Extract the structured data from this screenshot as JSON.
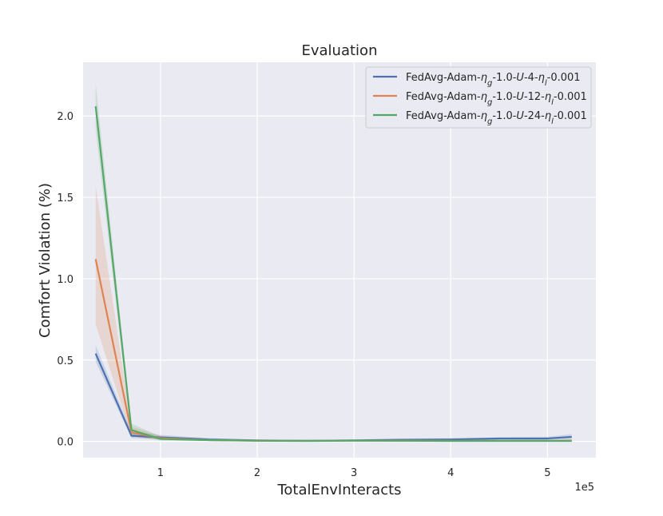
{
  "chart_data": {
    "type": "line",
    "title": "Evaluation",
    "xlabel": "TotalEnvInteracts",
    "ylabel": "Comfort Violation (%)",
    "x_multiplier_label": "1e5",
    "xlim": [
      0.2,
      5.5
    ],
    "ylim": [
      -0.1,
      2.33
    ],
    "x_ticks": [
      1,
      2,
      3,
      4,
      5
    ],
    "y_ticks": [
      0.0,
      0.5,
      1.0,
      1.5,
      2.0
    ],
    "y_tick_labels": [
      "0.0",
      "0.5",
      "1.0",
      "1.5",
      "2.0"
    ],
    "grid": true,
    "legend_position": "top-right",
    "x": [
      0.33,
      0.7,
      1.0,
      1.5,
      2.0,
      2.5,
      3.0,
      3.5,
      4.0,
      4.5,
      5.0,
      5.25
    ],
    "series": [
      {
        "label_parts": [
          "FedAvg-Adam-",
          "η",
          "g",
          "-1.0-",
          "U",
          "-4-",
          "η",
          "l",
          "-0.001"
        ],
        "color": "#4c72b0",
        "values": [
          0.54,
          0.035,
          0.025,
          0.012,
          0.006,
          0.004,
          0.006,
          0.01,
          0.012,
          0.018,
          0.018,
          0.028
        ],
        "lower": [
          0.49,
          0.02,
          0.012,
          0.005,
          0.002,
          0.001,
          0.002,
          0.004,
          0.006,
          0.01,
          0.01,
          0.012
        ],
        "upper": [
          0.59,
          0.06,
          0.04,
          0.02,
          0.01,
          0.008,
          0.012,
          0.018,
          0.02,
          0.025,
          0.028,
          0.045
        ]
      },
      {
        "label_parts": [
          "FedAvg-Adam-",
          "η",
          "g",
          "-1.0-",
          "U",
          "-12-",
          "η",
          "l",
          "-0.001"
        ],
        "color": "#dd8452",
        "values": [
          1.12,
          0.055,
          0.02,
          0.008,
          0.005,
          0.004,
          0.005,
          0.005,
          0.004,
          0.004,
          0.004,
          0.005
        ],
        "lower": [
          0.72,
          0.03,
          0.01,
          0.003,
          0.001,
          0.001,
          0.001,
          0.001,
          0.001,
          0.001,
          0.001,
          0.001
        ],
        "upper": [
          1.57,
          0.09,
          0.035,
          0.015,
          0.01,
          0.008,
          0.01,
          0.01,
          0.008,
          0.008,
          0.008,
          0.01
        ]
      },
      {
        "label_parts": [
          "FedAvg-Adam-",
          "η",
          "g",
          "-1.0-",
          "U",
          "-24-",
          "η",
          "l",
          "-0.001"
        ],
        "color": "#55a868",
        "values": [
          2.06,
          0.07,
          0.015,
          0.008,
          0.004,
          0.003,
          0.005,
          0.004,
          0.003,
          0.003,
          0.003,
          0.003
        ],
        "lower": [
          1.92,
          0.035,
          0.005,
          0.002,
          0.001,
          0.001,
          0.001,
          0.001,
          0.001,
          0.001,
          0.001,
          0.001
        ],
        "upper": [
          2.2,
          0.11,
          0.03,
          0.015,
          0.008,
          0.008,
          0.01,
          0.008,
          0.006,
          0.006,
          0.006,
          0.006
        ]
      }
    ]
  }
}
